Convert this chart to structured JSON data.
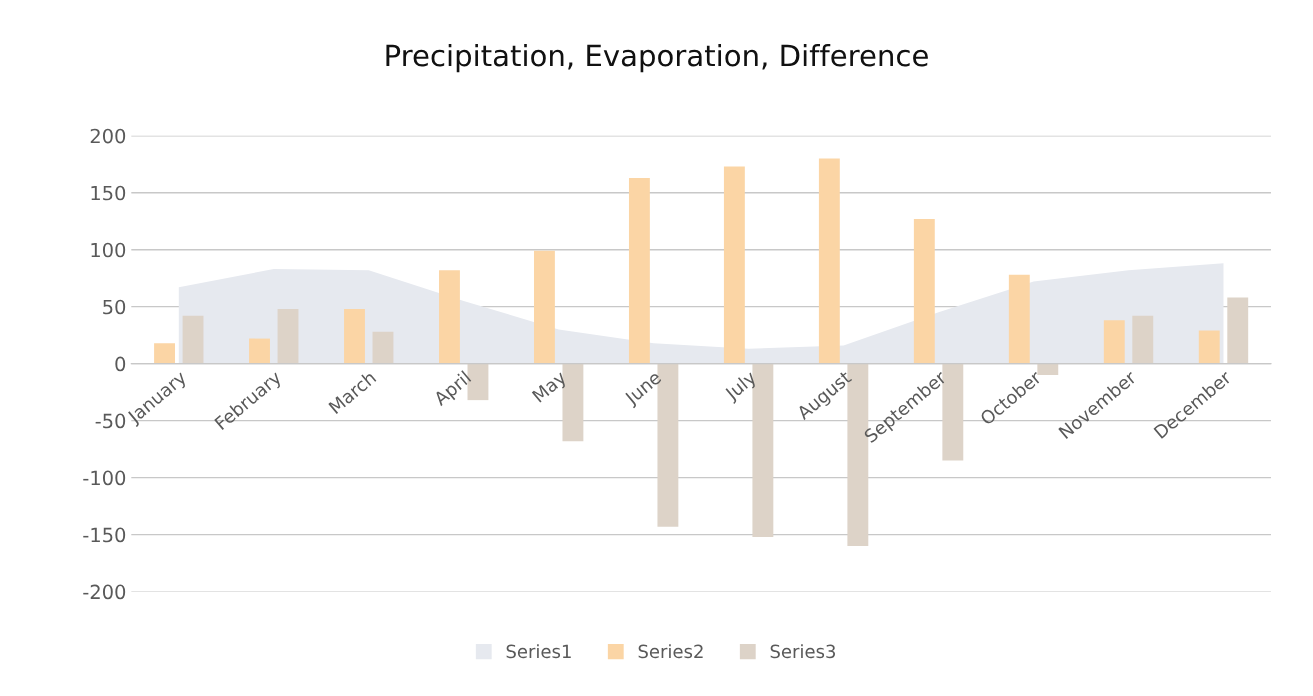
{
  "chart_data": {
    "type": "bar",
    "title": "Precipitation, Evaporation, Difference",
    "categories": [
      "January",
      "February",
      "March",
      "April",
      "May",
      "June",
      "July",
      "August",
      "September",
      "October",
      "November",
      "December"
    ],
    "series": [
      {
        "name": "Series1",
        "type": "area",
        "color": "#e6e9ef",
        "values": [
          67,
          83,
          82,
          55,
          30,
          18,
          13,
          16,
          45,
          72,
          82,
          88
        ]
      },
      {
        "name": "Series2",
        "type": "bar",
        "color": "#fbd5a5",
        "values": [
          18,
          22,
          48,
          82,
          99,
          163,
          173,
          180,
          127,
          78,
          38,
          29
        ]
      },
      {
        "name": "Series3",
        "type": "bar",
        "color": "#ddd3c8",
        "values": [
          42,
          48,
          28,
          -32,
          -68,
          -143,
          -152,
          -160,
          -85,
          -10,
          42,
          58
        ]
      }
    ],
    "ylim": [
      -200,
      200
    ],
    "yticks": [
      -200,
      -150,
      -100,
      -50,
      0,
      50,
      100,
      150,
      200
    ],
    "grid": "y",
    "legend": "bottom"
  }
}
